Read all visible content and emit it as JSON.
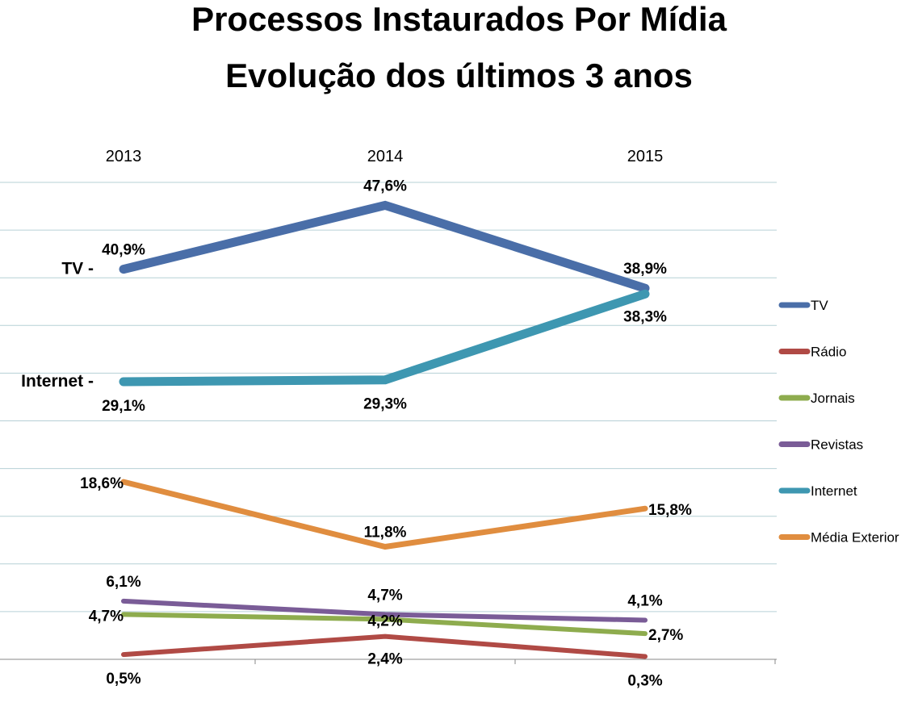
{
  "title_line1": "Processos Instaurados Por Mídia",
  "title_line2": "Evolução dos últimos 3 anos",
  "chart_data": {
    "type": "line",
    "title": "Processos Instaurados Por Mídia Evolução dos últimos 3 anos",
    "categories": [
      "2013",
      "2014",
      "2015"
    ],
    "grid": true,
    "legend_position": "right",
    "ylim": [
      0,
      50
    ],
    "series": [
      {
        "name": "TV",
        "values": [
          40.9,
          47.6,
          38.9
        ],
        "labels": [
          "40,9%",
          "47,6%",
          "38,9%"
        ],
        "color": "#4a6ea8",
        "side_label": "TV -"
      },
      {
        "name": "Rádio",
        "values": [
          0.5,
          2.4,
          0.3
        ],
        "labels": [
          "0,5%",
          "2,4%",
          "0,3%"
        ],
        "color": "#b04a45",
        "side_label": ""
      },
      {
        "name": "Jornais",
        "values": [
          4.7,
          4.2,
          2.7
        ],
        "labels": [
          "4,7%",
          "4,2%",
          "2,7%"
        ],
        "color": "#8eac4e",
        "side_label": ""
      },
      {
        "name": "Revistas",
        "values": [
          6.1,
          4.7,
          4.1
        ],
        "labels": [
          "6,1%",
          "4,7%",
          "4,1%"
        ],
        "color": "#7a5c97",
        "side_label": ""
      },
      {
        "name": "Internet",
        "values": [
          29.1,
          29.3,
          38.3
        ],
        "labels": [
          "29,1%",
          "29,3%",
          "38,3%"
        ],
        "color": "#3e97b1",
        "side_label": "Internet -"
      },
      {
        "name": "Média Exterior",
        "values": [
          18.6,
          11.8,
          15.8
        ],
        "labels": [
          "18,6%",
          "11,8%",
          "15,8%"
        ],
        "color": "#e08d3f",
        "side_label": ""
      }
    ]
  }
}
